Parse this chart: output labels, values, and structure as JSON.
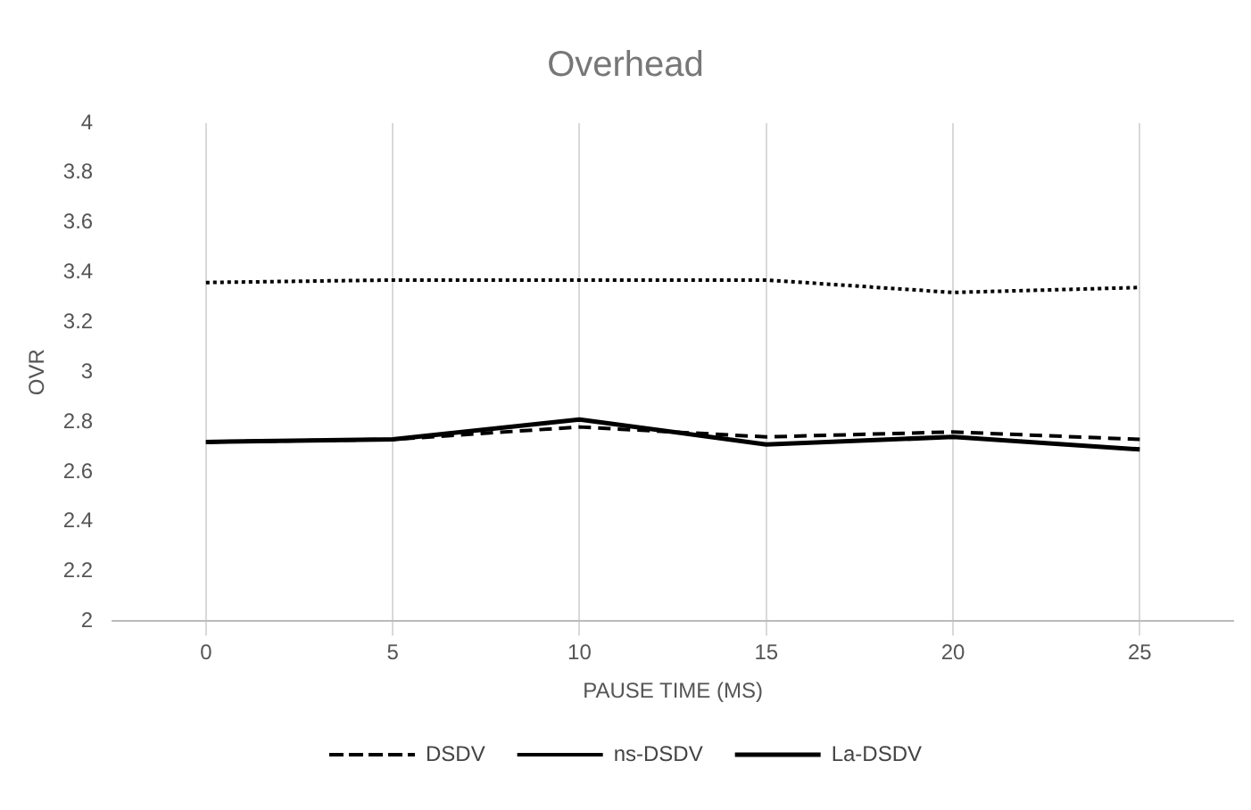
{
  "chart_data": {
    "type": "line",
    "title": "Overhead",
    "xlabel": "PAUSE TIME (MS)",
    "ylabel": "OVR",
    "categories": [
      "0",
      "5",
      "10",
      "15",
      "20",
      "25"
    ],
    "series": [
      {
        "name": "DSDV",
        "color": "#000000",
        "line_style": "dashed",
        "values": [
          2.72,
          2.73,
          2.78,
          2.74,
          2.76,
          2.73
        ]
      },
      {
        "name": "ns-DSDV",
        "color": "#000000",
        "line_style": "dotted",
        "values": [
          3.36,
          3.37,
          3.37,
          3.37,
          3.32,
          3.34
        ]
      },
      {
        "name": "La-DSDV",
        "color": "#000000",
        "line_style": "solid",
        "values": [
          2.72,
          2.73,
          2.81,
          2.71,
          2.74,
          2.69
        ]
      }
    ],
    "ylim": [
      2,
      4
    ],
    "yticks": [
      2,
      2.2,
      2.4,
      2.6,
      2.8,
      3,
      3.2,
      3.4,
      3.6,
      3.8,
      4
    ],
    "grid": "x",
    "legend": "bottom",
    "marker": "none"
  }
}
